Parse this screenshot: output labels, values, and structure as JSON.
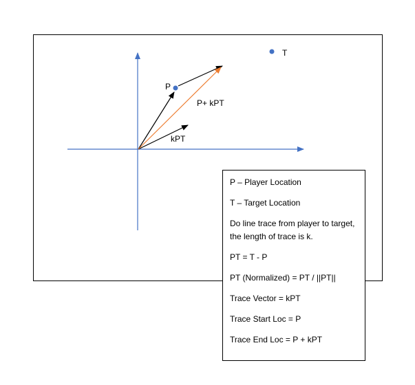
{
  "colors": {
    "axis": "#4472c4",
    "point": "#4472c4",
    "sum_vector": "#ed7d31",
    "vector": "#000000",
    "frame": "#000000"
  },
  "labels": {
    "point_p": "P",
    "point_t": "T",
    "vector_sum": "P+ kPT",
    "vector_kpt": "kPT"
  },
  "legend": [
    "P – Player Location",
    "T – Target Location",
    "Do line trace from player to target, the length of trace is k.",
    "PT = T - P",
    "PT (Normalized) = PT / ||PT||",
    "Trace Vector = kPT",
    "Trace Start Loc = P",
    "Trace End Loc = P + kPT"
  ]
}
